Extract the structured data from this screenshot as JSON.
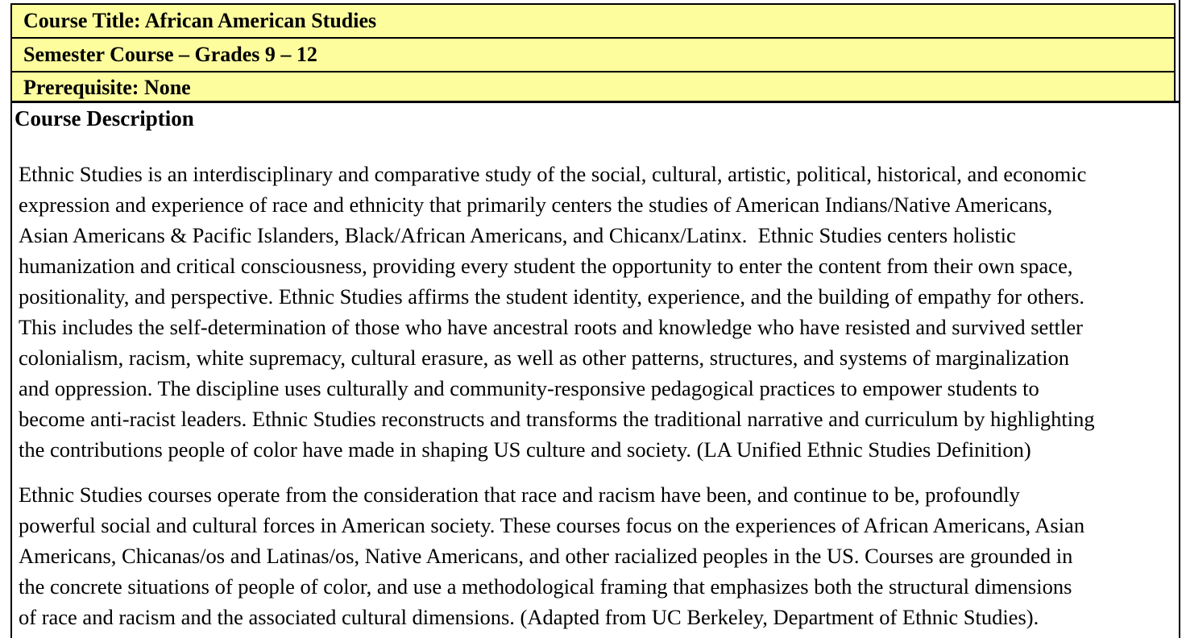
{
  "document": {
    "header_rows": [
      {
        "label": "Course Title: African American Studies"
      },
      {
        "label": "Semester Course – Grades 9 – 12"
      },
      {
        "label": "Prerequisite: None"
      }
    ],
    "section": {
      "heading": "Course Description",
      "paragraph1": "Ethnic Studies is an interdisciplinary and comparative study of the social, cultural, artistic, political, historical, and economic\nexpression and experience of race and ethnicity that primarily centers the studies of American Indians/Native Americans,\nAsian Americans & Pacific Islanders, Black/African Americans, and Chicanx/Latinx.  Ethnic Studies centers holistic\nhumanization and critical consciousness, providing every student the opportunity to enter the content from their own space,\npositionality, and perspective. Ethnic Studies affirms the student identity, experience, and the building of empathy for others.\nThis includes the self-determination of those who have ancestral roots and knowledge who have resisted and survived settler\ncolonialism, racism, white supremacy, cultural erasure, as well as other patterns, structures, and systems of marginalization\nand oppression. The discipline uses culturally and community-responsive pedagogical practices to empower students to\nbecome anti-racist leaders. Ethnic Studies reconstructs and transforms the traditional narrative and curriculum by highlighting\nthe contributions people of color have made in shaping US culture and society. (LA Unified Ethnic Studies Definition)",
      "paragraph2": "Ethnic Studies courses operate from the consideration that race and racism have been, and continue to be, profoundly\npowerful social and cultural forces in American society. These courses focus on the experiences of African Americans, Asian\nAmericans, Chicanas/os and Latinas/os, Native Americans, and other racialized peoples in the US. Courses are grounded in\nthe concrete situations of people of color, and use a methodological framing that emphasizes both the structural dimensions\nof race and racism and the associated cultural dimensions. (Adapted from UC Berkeley, Department of Ethnic Studies)."
    }
  },
  "colors": {
    "row_background": "#FDFD9E",
    "border": "#000000",
    "text": "#000000"
  }
}
